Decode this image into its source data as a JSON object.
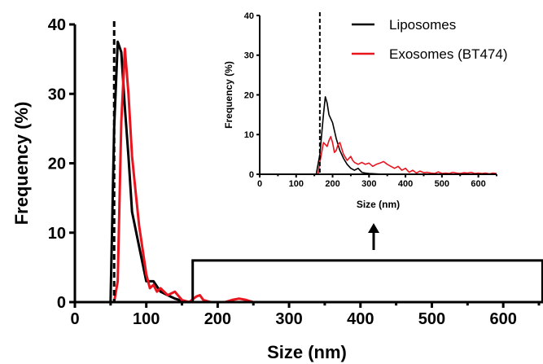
{
  "chart_data": [
    {
      "type": "line",
      "title": "",
      "xlabel": "Size (nm)",
      "ylabel": "Frequency  (%)",
      "xlim": [
        0,
        650
      ],
      "ylim": [
        0,
        40
      ],
      "xticks": [
        "0",
        "100",
        "200",
        "300",
        "400",
        "500",
        "600"
      ],
      "xtick_values": [
        0,
        100,
        200,
        300,
        400,
        500,
        600
      ],
      "yticks": [
        "0",
        "10",
        "20",
        "30",
        "40"
      ],
      "ytick_values": [
        0,
        10,
        20,
        30,
        40
      ],
      "reference_line_x": 55,
      "highlight_box": {
        "x": [
          165,
          655
        ],
        "y": [
          0,
          6
        ]
      },
      "series": [
        {
          "name": "Liposomes",
          "color": "#000000",
          "x": [
            0,
            50,
            55,
            60,
            65,
            70,
            75,
            80,
            90,
            100,
            110,
            120,
            130,
            140,
            150,
            160,
            170,
            180,
            190,
            200,
            650
          ],
          "y": [
            0,
            0,
            25,
            37.5,
            36,
            28,
            21,
            13,
            8,
            3,
            3,
            1.5,
            1,
            0.5,
            0.2,
            0,
            0,
            0,
            0,
            0,
            0
          ]
        },
        {
          "name": "Exosomes (BT474)",
          "color": "#e8141e",
          "x": [
            0,
            55,
            60,
            65,
            70,
            75,
            80,
            85,
            90,
            100,
            105,
            110,
            115,
            120,
            130,
            140,
            150,
            160,
            170,
            175,
            180,
            190,
            200,
            210,
            220,
            230,
            240,
            250,
            650
          ],
          "y": [
            0,
            0,
            3,
            26,
            36.5,
            30,
            21,
            16,
            11,
            4,
            2,
            2.5,
            1.5,
            2,
            1,
            1.5,
            0.3,
            0,
            0.8,
            1,
            0.3,
            0,
            0,
            0,
            0.3,
            0.5,
            0.3,
            0,
            0
          ]
        }
      ]
    },
    {
      "type": "line",
      "title": "",
      "xlabel": "Size (nm)",
      "ylabel": "Frequency (%)",
      "xlim": [
        0,
        650
      ],
      "ylim": [
        0,
        40
      ],
      "xticks": [
        "0",
        "100",
        "200",
        "300",
        "400",
        "500",
        "600"
      ],
      "xtick_values": [
        0,
        100,
        200,
        300,
        400,
        500,
        600
      ],
      "yticks": [
        "0",
        "10",
        "20",
        "30",
        "40"
      ],
      "ytick_values": [
        0,
        10,
        20,
        30,
        40
      ],
      "reference_line_x": 165,
      "legend": "top-right",
      "series": [
        {
          "name": "Liposomes",
          "color": "#000000",
          "x": [
            0,
            155,
            165,
            170,
            175,
            180,
            185,
            190,
            200,
            210,
            220,
            230,
            240,
            250,
            260,
            270,
            280,
            290,
            300,
            320,
            340,
            360,
            380,
            650
          ],
          "y": [
            0,
            0,
            5,
            10,
            15,
            19.5,
            18,
            15,
            13,
            9,
            6,
            4,
            2.5,
            1.5,
            1,
            1.5,
            0.5,
            0.3,
            0.2,
            0.1,
            0,
            0,
            0,
            0
          ]
        },
        {
          "name": "Exosomes (BT474)",
          "color": "#e8141e",
          "x": [
            0,
            160,
            165,
            170,
            175,
            180,
            185,
            190,
            195,
            200,
            205,
            210,
            215,
            220,
            225,
            230,
            240,
            250,
            255,
            260,
            270,
            280,
            290,
            300,
            310,
            320,
            330,
            340,
            350,
            360,
            370,
            380,
            390,
            400,
            410,
            420,
            430,
            440,
            450,
            460,
            470,
            480,
            490,
            500,
            510,
            520,
            530,
            540,
            550,
            560,
            570,
            580,
            590,
            600,
            610,
            620,
            630,
            640,
            650
          ],
          "y": [
            0,
            0,
            3,
            5.5,
            8,
            7.5,
            7,
            8.5,
            9.5,
            8,
            5.5,
            6,
            7.5,
            8,
            6.5,
            5,
            3.5,
            4.5,
            3.5,
            3,
            2.5,
            3,
            2.5,
            2.8,
            2,
            2.5,
            2.8,
            3.2,
            2.5,
            2,
            1.5,
            2,
            1,
            1.5,
            0.5,
            1,
            0.3,
            0.8,
            0.4,
            0.5,
            0.3,
            0.2,
            0.6,
            0.2,
            0.3,
            0.2,
            0.5,
            0.3,
            0.2,
            0.4,
            0.3,
            0.5,
            0.2,
            0.3,
            0.2,
            0.3,
            0.1,
            0.3,
            0.2
          ]
        }
      ]
    }
  ]
}
